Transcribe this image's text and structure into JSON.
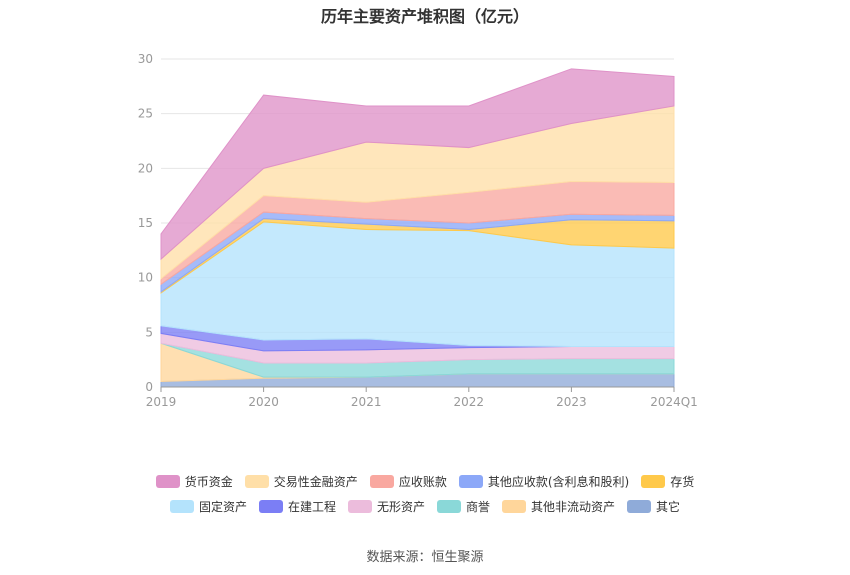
{
  "chart_data": {
    "type": "area",
    "stacked": true,
    "title": "历年主要资产堆积图（亿元）",
    "source": "数据来源：恒生聚源",
    "categories": [
      "2019",
      "2020",
      "2021",
      "2022",
      "2023",
      "2024Q1"
    ],
    "ylim": [
      0,
      30
    ],
    "yticks": [
      0,
      5,
      10,
      15,
      20,
      25,
      30
    ],
    "grid": true,
    "legend_position": "bottom",
    "series": [
      {
        "name": "其它",
        "color": "#8fabd9",
        "values": [
          0.5,
          0.8,
          0.9,
          1.2,
          1.2,
          1.2
        ]
      },
      {
        "name": "其他非流动资产",
        "color": "#ffd69b",
        "values": [
          3.5,
          0.1,
          0.0,
          0.0,
          0.0,
          0.0
        ]
      },
      {
        "name": "商誉",
        "color": "#8ad8d8",
        "values": [
          0.0,
          1.3,
          1.3,
          1.3,
          1.4,
          1.4
        ]
      },
      {
        "name": "无形资产",
        "color": "#ecbcdc",
        "values": [
          0.9,
          1.1,
          1.2,
          1.1,
          1.1,
          1.1
        ]
      },
      {
        "name": "在建工程",
        "color": "#7b7ef5",
        "values": [
          0.7,
          1.0,
          1.0,
          0.2,
          0.0,
          0.0
        ]
      },
      {
        "name": "固定资产",
        "color": "#b4e3fc",
        "values": [
          3.0,
          10.8,
          10.0,
          10.5,
          9.3,
          9.0
        ]
      },
      {
        "name": "存货",
        "color": "#ffc94a",
        "values": [
          0.1,
          0.3,
          0.5,
          0.1,
          2.3,
          2.5
        ]
      },
      {
        "name": "其他应收款(含利息和股利)",
        "color": "#8ca8f8",
        "values": [
          0.7,
          0.6,
          0.5,
          0.6,
          0.5,
          0.5
        ]
      },
      {
        "name": "应收账款",
        "color": "#f9a8a0",
        "values": [
          0.5,
          1.5,
          1.5,
          2.8,
          3.0,
          3.0
        ]
      },
      {
        "name": "交易性金融资产",
        "color": "#ffdfa8",
        "values": [
          1.8,
          2.5,
          5.5,
          4.1,
          5.3,
          7.0
        ]
      },
      {
        "name": "货币资金",
        "color": "#df92c8",
        "values": [
          2.3,
          6.7,
          3.3,
          3.8,
          5.0,
          2.7
        ]
      }
    ]
  },
  "legend_rows": [
    [
      {
        "name": "货币资金",
        "color": "#df92c8"
      },
      {
        "name": "交易性金融资产",
        "color": "#ffdfa8"
      },
      {
        "name": "应收账款",
        "color": "#f9a8a0"
      },
      {
        "name": "其他应收款(含利息和股利)",
        "color": "#8ca8f8"
      },
      {
        "name": "存货",
        "color": "#ffc94a"
      }
    ],
    [
      {
        "name": "固定资产",
        "color": "#b4e3fc"
      },
      {
        "name": "在建工程",
        "color": "#7b7ef5"
      },
      {
        "name": "无形资产",
        "color": "#ecbcdc"
      },
      {
        "name": "商誉",
        "color": "#8ad8d8"
      },
      {
        "name": "其他非流动资产",
        "color": "#ffd69b"
      },
      {
        "name": "其它",
        "color": "#8fabd9"
      }
    ]
  ]
}
